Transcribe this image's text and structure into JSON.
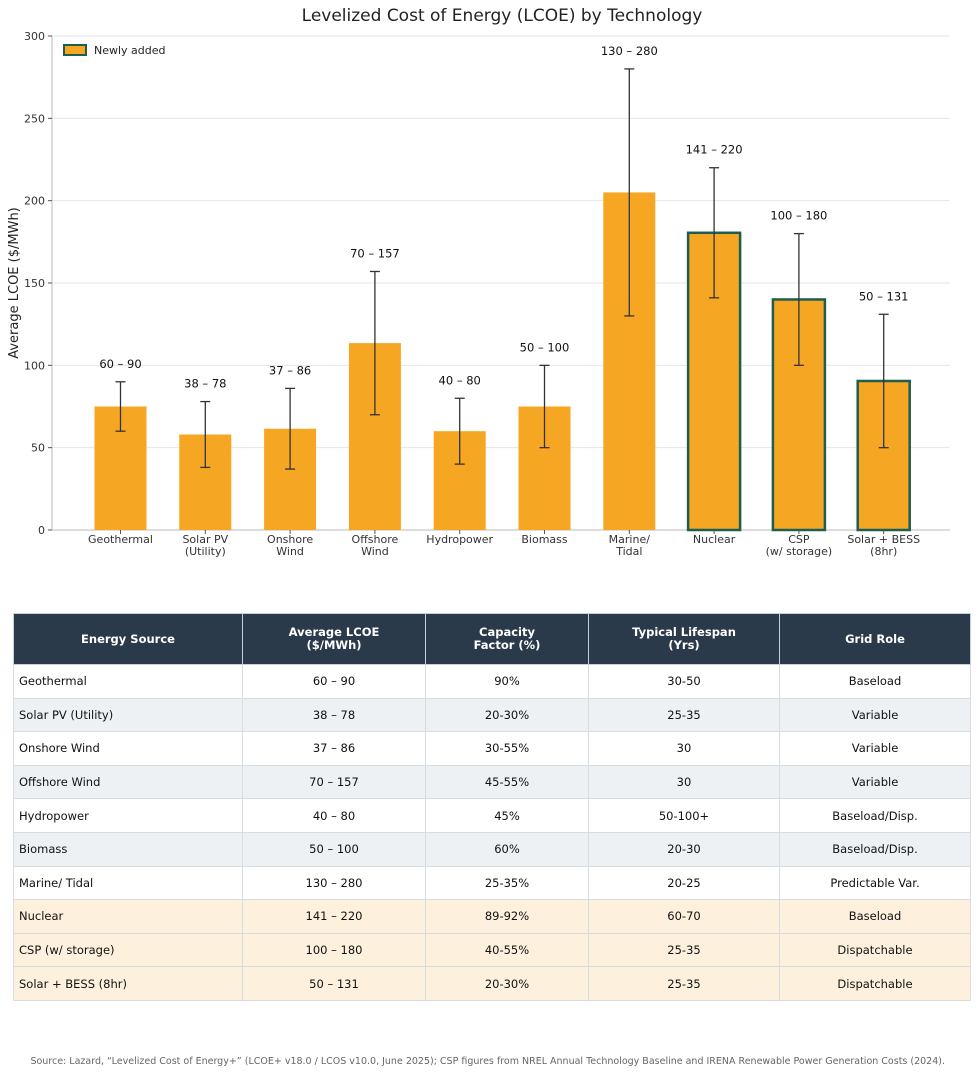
{
  "chart_data": {
    "type": "bar",
    "title": "Levelized Cost of Energy (LCOE) by Technology",
    "xlabel": "",
    "ylabel": "Average LCOE ($/MWh)",
    "ylim": [
      0,
      300
    ],
    "yticks": [
      0,
      50,
      100,
      150,
      200,
      250,
      300
    ],
    "grid": "horizontal",
    "legend": {
      "placement": "top-left",
      "entries": [
        "Newly added"
      ]
    },
    "categories": [
      "Geothermal",
      "Solar PV\n(Utility)",
      "Onshore\nWind",
      "Offshore\nWind",
      "Hydropower",
      "Biomass",
      "Marine/\nTidal",
      "Nuclear",
      "CSP\n(w/ storage)",
      "Solar + BESS\n(8hr)"
    ],
    "values": [
      75,
      58,
      61.5,
      113.5,
      60,
      75,
      205,
      180.5,
      140,
      90.5
    ],
    "err_low": [
      60,
      38,
      37,
      70,
      40,
      50,
      130,
      141,
      100,
      50
    ],
    "err_high": [
      90,
      78,
      86,
      157,
      80,
      100,
      280,
      220,
      180,
      131
    ],
    "range_labels": [
      "60 – 90",
      "38 – 78",
      "37 – 86",
      "70 – 157",
      "40 – 80",
      "50 – 100",
      "130 – 280",
      "141 – 220",
      "100 – 180",
      "50 – 131"
    ],
    "newly_added": [
      false,
      false,
      false,
      false,
      false,
      false,
      false,
      true,
      true,
      true
    ],
    "colors": {
      "bar": "#f5a623",
      "highlight_edge": "#1e5e4f",
      "error": "#333333",
      "grid": "#e6e6e6"
    }
  },
  "table": {
    "headers": [
      "Energy Source",
      "Average LCOE\n($/MWh)",
      "Capacity\nFactor (%)",
      "Typical Lifespan\n(Yrs)",
      "Grid Role"
    ],
    "rows": [
      [
        "Geothermal",
        "60 – 90",
        "90%",
        "30-50",
        "Baseload"
      ],
      [
        "Solar PV (Utility)",
        "38 – 78",
        "20-30%",
        "25-35",
        "Variable"
      ],
      [
        "Onshore Wind",
        "37 – 86",
        "30-55%",
        "30",
        "Variable"
      ],
      [
        "Offshore Wind",
        "70 – 157",
        "45-55%",
        "30",
        "Variable"
      ],
      [
        "Hydropower",
        "40 – 80",
        "45%",
        "50-100+",
        "Baseload/Disp."
      ],
      [
        "Biomass",
        "50 – 100",
        "60%",
        "20-30",
        "Baseload/Disp."
      ],
      [
        "Marine/ Tidal",
        "130 – 280",
        "25-35%",
        "20-25",
        "Predictable Var."
      ],
      [
        "Nuclear",
        "141 – 220",
        "89-92%",
        "60-70",
        "Baseload"
      ],
      [
        "CSP (w/ storage)",
        "100 – 180",
        "40-55%",
        "25-35",
        "Dispatchable"
      ],
      [
        "Solar + BESS (8hr)",
        "50 – 131",
        "20-30%",
        "25-35",
        "Dispatchable"
      ]
    ],
    "new_rows": [
      7,
      8,
      9
    ]
  },
  "source_note": "Source: Lazard, “Levelized Cost of Energy+” (LCOE+ v18.0 / LCOS v10.0, June 2025); CSP figures from NREL Annual Technology Baseline and IRENA Renewable Power Generation Costs (2024)."
}
